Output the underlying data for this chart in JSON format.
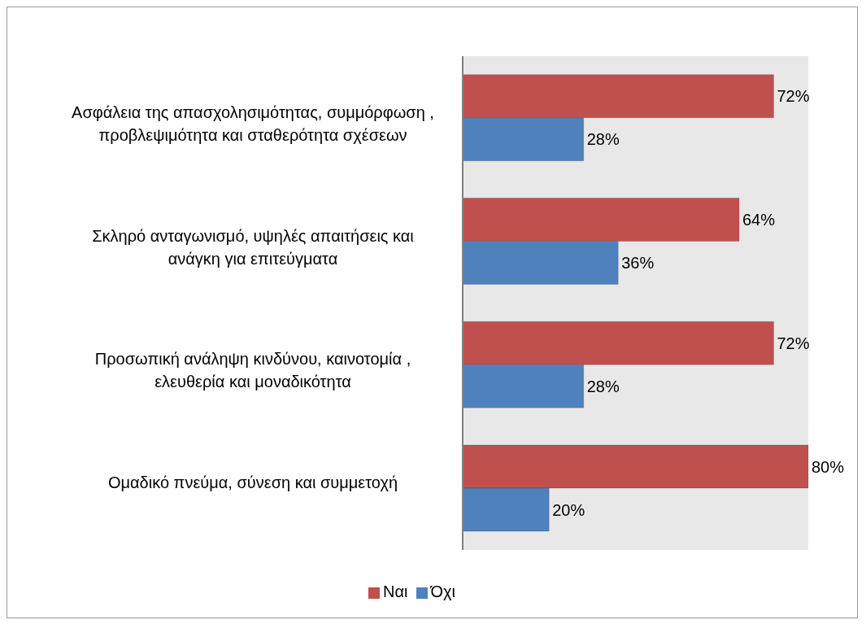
{
  "chart_data": {
    "type": "bar",
    "orientation": "horizontal",
    "categories": [
      "Ασφάλεια της απασχολησιμότητας, συμμόρφωση , προβλεψιμότητα και σταθερότητα σχέσεων",
      "Σκληρό ανταγωνισμό, υψηλές απαιτήσεις και ανάγκη για επιτεύγματα",
      "Προσωπική ανάληψη κινδύνου, καινοτομία , ελευθερία και μοναδικότητα",
      "Ομαδικό πνεύμα, σύνεση και συμμετοχή"
    ],
    "series": [
      {
        "name": "Ναι",
        "color": "#c0504d",
        "values": [
          72,
          64,
          72,
          80
        ],
        "value_labels": [
          "72%",
          "64%",
          "72%",
          "80%"
        ]
      },
      {
        "name": "Όχι",
        "color": "#4f81bd",
        "values": [
          28,
          36,
          28,
          20
        ],
        "value_labels": [
          "28%",
          "36%",
          "28%",
          "20%"
        ]
      }
    ],
    "grid": false,
    "legend": "bottom"
  }
}
